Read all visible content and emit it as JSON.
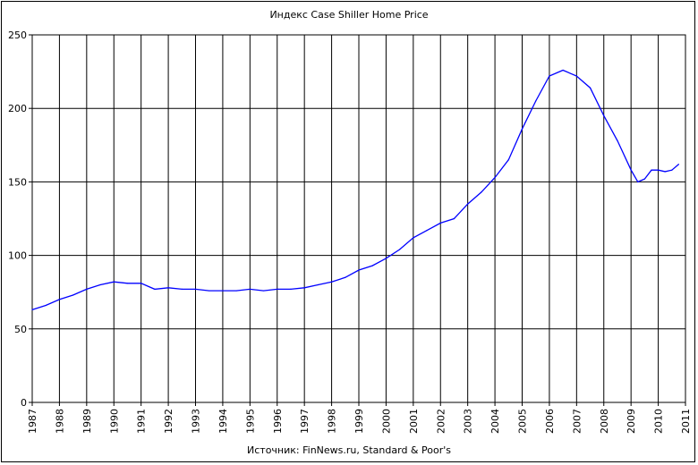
{
  "chart_data": {
    "type": "line",
    "title": "Индекс Case Shiller Home Price",
    "source": "Источник: FinNews.ru, Standard & Poor's",
    "xlim": [
      1987,
      2011
    ],
    "ylim": [
      0,
      250
    ],
    "yticks": [
      0,
      50,
      100,
      150,
      200,
      250
    ],
    "xticks": [
      1987,
      1988,
      1989,
      1990,
      1991,
      1992,
      1993,
      1994,
      1995,
      1996,
      1997,
      1998,
      1999,
      2000,
      2001,
      2002,
      2003,
      2004,
      2005,
      2006,
      2007,
      2008,
      2009,
      2010,
      2011
    ],
    "grid": true,
    "line_color": "#0000ff",
    "series": [
      {
        "x": [
          1987.0,
          1987.5,
          1988.0,
          1988.5,
          1989.0,
          1989.5,
          1990.0,
          1990.5,
          1991.0,
          1991.5,
          1992.0,
          1992.5,
          1993.0,
          1993.5,
          1994.0,
          1994.5,
          1995.0,
          1995.5,
          1996.0,
          1996.5,
          1997.0,
          1997.5,
          1998.0,
          1998.5,
          1999.0,
          1999.5,
          2000.0,
          2000.5,
          2001.0,
          2001.5,
          2002.0,
          2002.5,
          2003.0,
          2003.5,
          2004.0,
          2004.5,
          2005.0,
          2005.5,
          2006.0,
          2006.5,
          2007.0,
          2007.5,
          2008.0,
          2008.5,
          2009.0,
          2009.25,
          2009.5,
          2009.75,
          2010.0,
          2010.25,
          2010.5,
          2010.75
        ],
        "values": [
          63,
          66,
          70,
          73,
          77,
          80,
          82,
          81,
          81,
          77,
          78,
          77,
          77,
          76,
          76,
          76,
          77,
          76,
          77,
          77,
          78,
          80,
          82,
          85,
          90,
          93,
          98,
          104,
          112,
          117,
          122,
          125,
          135,
          143,
          153,
          165,
          186,
          205,
          222,
          226,
          222,
          214,
          195,
          178,
          158,
          150,
          152,
          158,
          158,
          157,
          158,
          162
        ]
      }
    ]
  }
}
